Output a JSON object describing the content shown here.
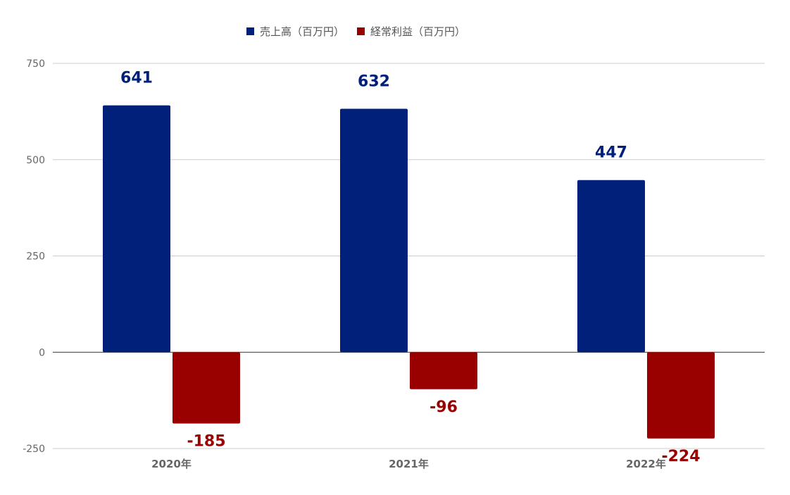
{
  "chart_data": {
    "type": "bar",
    "categories": [
      "2020年",
      "2021年",
      "2022年"
    ],
    "series": [
      {
        "name": "売上高（百万円）",
        "values": [
          641,
          632,
          447
        ],
        "color": "#00207a"
      },
      {
        "name": "経常利益（百万円）",
        "values": [
          -185,
          -96,
          -224
        ],
        "color": "#990000"
      }
    ],
    "ylim": [
      -250,
      750
    ],
    "yticks": [
      -250,
      0,
      250,
      500,
      750
    ],
    "grid": true,
    "legend_position": "top",
    "data_labels": true
  }
}
